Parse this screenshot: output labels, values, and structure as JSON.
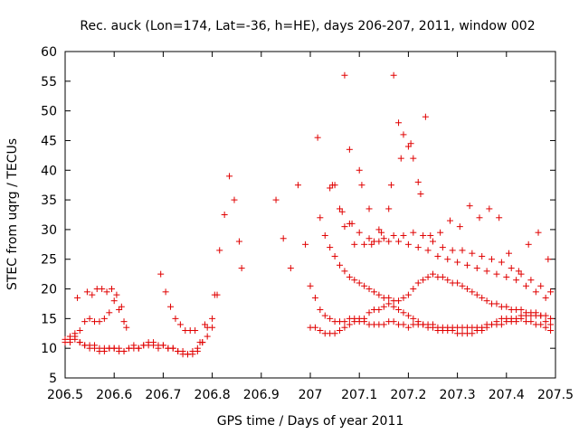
{
  "chart_data": {
    "type": "scatter",
    "title": "Rec. auck (Lon=174, Lat=-36, h=HE), days 206-207, 2011, window 002",
    "xlabel": "GPS time / Days of year 2011",
    "ylabel": "STEC from uqrg / TECUs",
    "xlim": [
      206.5,
      207.5
    ],
    "ylim": [
      5,
      60
    ],
    "xticks": [
      "206.5",
      "206.6",
      "206.7",
      "206.8",
      "206.9",
      "207",
      "207.1",
      "207.2",
      "207.3",
      "207.4",
      "207.5"
    ],
    "yticks": [
      "5",
      "10",
      "15",
      "20",
      "25",
      "30",
      "35",
      "40",
      "45",
      "50",
      "55",
      "60"
    ],
    "grid": false,
    "legend": "none",
    "marker": "plus",
    "color": "#e00000",
    "series": [
      {
        "x": [
          206.5,
          206.51,
          206.52,
          206.53,
          206.54,
          206.55,
          206.56,
          206.57,
          206.58,
          206.59,
          206.6,
          206.61,
          206.62,
          206.63,
          206.64,
          206.65,
          206.66,
          206.67,
          206.68,
          206.69,
          206.7,
          206.71,
          206.72,
          206.73,
          206.74,
          206.75,
          206.76,
          206.77,
          206.78,
          206.79,
          206.8,
          206.51,
          206.52,
          206.53,
          206.54,
          206.55,
          206.56,
          206.57,
          206.58,
          206.59,
          206.6,
          206.61,
          206.62,
          206.63,
          206.64,
          206.65,
          206.66,
          206.67,
          206.68,
          206.69,
          206.7,
          206.71,
          206.72,
          206.73,
          206.74,
          206.75,
          206.76,
          206.77,
          206.78,
          206.79,
          206.8,
          206.81,
          206.5,
          206.51,
          206.52,
          206.53,
          206.54,
          206.55,
          206.56,
          206.57,
          206.58,
          206.59,
          206.6,
          206.61,
          206.62,
          206.525,
          206.545,
          206.555,
          206.565,
          206.575,
          206.585,
          206.595,
          206.605,
          206.615,
          206.625,
          206.695,
          206.705,
          206.715,
          206.725,
          206.735,
          206.745,
          206.755,
          206.765,
          206.775,
          206.785,
          206.805,
          206.815,
          206.825,
          206.835,
          206.845,
          206.855,
          206.86,
          206.93,
          206.945,
          206.96,
          206.975,
          206.99
        ],
        "y": [
          11.5,
          11,
          12,
          11,
          10.5,
          10,
          10,
          9.5,
          9.5,
          10,
          10,
          9.5,
          9.5,
          10,
          10.5,
          10,
          10.5,
          10.5,
          10.5,
          10,
          10.5,
          10,
          10,
          9.5,
          9,
          9,
          9,
          9.5,
          11,
          13.5,
          15,
          12,
          11.5,
          11,
          10.5,
          10.5,
          10.5,
          10,
          10,
          10,
          10,
          10,
          9.5,
          10,
          10,
          10,
          10.5,
          11,
          11,
          10.5,
          10.5,
          10,
          10,
          9.5,
          9.5,
          9,
          9.5,
          10,
          11,
          12,
          13.5,
          19,
          11,
          11.5,
          12.5,
          13,
          14.5,
          15,
          14.5,
          14.5,
          15,
          16,
          18,
          16.5,
          14.5,
          18.5,
          19.5,
          19,
          20,
          20,
          19.5,
          20,
          19,
          17,
          13.5,
          22.5,
          19.5,
          17,
          15,
          14,
          13,
          13,
          13,
          11,
          14,
          19,
          26.5,
          32.5,
          39,
          35,
          28,
          23.5,
          35,
          28.5,
          23.5,
          37.5,
          27.5
        ]
      },
      {
        "x": [
          207.0,
          207.01,
          207.02,
          207.03,
          207.04,
          207.05,
          207.06,
          207.07,
          207.08,
          207.09,
          207.1,
          207.11,
          207.12,
          207.13,
          207.14,
          207.15,
          207.16,
          207.17,
          207.18,
          207.19,
          207.2,
          207.21,
          207.22,
          207.23,
          207.24,
          207.25,
          207.26,
          207.27,
          207.28,
          207.29,
          207.3,
          207.31,
          207.32,
          207.33,
          207.34,
          207.35,
          207.36,
          207.37,
          207.38,
          207.39,
          207.4,
          207.41,
          207.42,
          207.43,
          207.44,
          207.45,
          207.46,
          207.47,
          207.48,
          207.49,
          207.0,
          207.01,
          207.02,
          207.03,
          207.04,
          207.05,
          207.06,
          207.07,
          207.08,
          207.09,
          207.1,
          207.11,
          207.12,
          207.13,
          207.14,
          207.15,
          207.16,
          207.17,
          207.18,
          207.19,
          207.2,
          207.21,
          207.22,
          207.23,
          207.24,
          207.25,
          207.26,
          207.27,
          207.28,
          207.29,
          207.3,
          207.31,
          207.32,
          207.33,
          207.34,
          207.35,
          207.36,
          207.37,
          207.38,
          207.39,
          207.4,
          207.41,
          207.42,
          207.43,
          207.44,
          207.45,
          207.46,
          207.47,
          207.48,
          207.49,
          207.02,
          207.03,
          207.04,
          207.05,
          207.06,
          207.07,
          207.08,
          207.09,
          207.1,
          207.11,
          207.12,
          207.13,
          207.14,
          207.15,
          207.16,
          207.17,
          207.18,
          207.19,
          207.2,
          207.21,
          207.22,
          207.23,
          207.24,
          207.25,
          207.26,
          207.27,
          207.28,
          207.29,
          207.3,
          207.31,
          207.32,
          207.33,
          207.34,
          207.35,
          207.36,
          207.37,
          207.38,
          207.39,
          207.4,
          207.41,
          207.42,
          207.43,
          207.44,
          207.45,
          207.46,
          207.47,
          207.48,
          207.49,
          207.05,
          207.07,
          207.09,
          207.11,
          207.13,
          207.15,
          207.17,
          207.19,
          207.21,
          207.23,
          207.25,
          207.27,
          207.29,
          207.31,
          207.33,
          207.35,
          207.37,
          207.39,
          207.41,
          207.43,
          207.45,
          207.47,
          207.49,
          207.04,
          207.06,
          207.08,
          207.1,
          207.12,
          207.14,
          207.16,
          207.18,
          207.2,
          207.22,
          207.24,
          207.26,
          207.28,
          207.3,
          207.32,
          207.34,
          207.36,
          207.38,
          207.4,
          207.42,
          207.44,
          207.46,
          207.48,
          207.07,
          207.08,
          207.1,
          207.12,
          207.14,
          207.16,
          207.17,
          207.18,
          207.19,
          207.2,
          207.21,
          207.22,
          207.235,
          207.015,
          207.045,
          207.065,
          207.085,
          207.105,
          207.125,
          207.145,
          207.165,
          207.185,
          207.205,
          207.225,
          207.245,
          207.265,
          207.285,
          207.305,
          207.325,
          207.345,
          207.365,
          207.385,
          207.405,
          207.425,
          207.445,
          207.465,
          207.485
        ],
        "y": [
          13.5,
          13.5,
          13,
          12.5,
          12.5,
          12.5,
          13,
          13.5,
          14,
          14.5,
          14.5,
          14.5,
          14,
          14,
          14,
          14,
          14.5,
          14.5,
          14,
          14,
          13.5,
          14,
          14,
          14,
          13.5,
          13.5,
          13,
          13,
          13,
          13,
          12.5,
          12.5,
          12.5,
          12.5,
          13,
          13,
          13.5,
          14,
          14,
          14,
          14.5,
          14.5,
          14.5,
          15,
          14.5,
          14.5,
          14,
          14,
          13.5,
          13,
          20.5,
          18.5,
          16.5,
          15.5,
          15,
          14.5,
          14.5,
          14.5,
          15,
          15,
          15,
          15,
          16,
          16.5,
          16.5,
          17,
          17.5,
          17,
          16.5,
          16,
          15.5,
          15,
          14.5,
          14,
          14,
          14,
          13.5,
          13.5,
          13.5,
          13.5,
          13.5,
          13.5,
          13.5,
          13.5,
          13.5,
          13.5,
          14,
          14,
          14.5,
          15,
          15,
          15,
          15,
          15.5,
          15.5,
          15.5,
          15.5,
          15.5,
          14.5,
          14,
          32,
          29,
          27,
          25.5,
          24,
          23,
          22,
          21.5,
          21,
          20.5,
          20,
          19.5,
          19,
          18.5,
          18.5,
          18,
          18,
          18.5,
          19,
          20,
          21,
          21.5,
          22,
          22.5,
          22,
          22,
          21.5,
          21,
          21,
          20.5,
          20,
          19.5,
          19,
          18.5,
          18,
          17.5,
          17.5,
          17,
          17,
          16.5,
          16.5,
          16.5,
          16,
          16,
          16,
          15.5,
          15.5,
          15,
          37.5,
          30.5,
          27.5,
          27.5,
          28,
          28.5,
          29,
          29,
          29.5,
          29,
          28,
          27,
          26.5,
          26.5,
          26,
          25.5,
          25,
          24.5,
          23.5,
          22.5,
          21.5,
          20.5,
          19.5,
          37,
          33.5,
          31,
          29.5,
          28.5,
          28,
          28,
          28,
          27.5,
          27,
          26.5,
          25.5,
          25,
          24.5,
          24,
          23.5,
          23,
          22.5,
          22,
          21.5,
          20.5,
          19.5,
          18.5,
          56,
          43.5,
          40,
          33.5,
          30,
          33.5,
          56,
          48,
          46,
          44,
          42,
          38,
          49,
          45.5,
          37.5,
          33,
          31,
          37.5,
          27.5,
          29.5,
          37.5,
          42,
          44.5,
          36,
          29,
          29.5,
          31.5,
          30.5,
          34,
          32,
          33.5,
          32,
          26,
          23,
          27.5,
          29.5,
          25
        ]
      }
    ]
  }
}
